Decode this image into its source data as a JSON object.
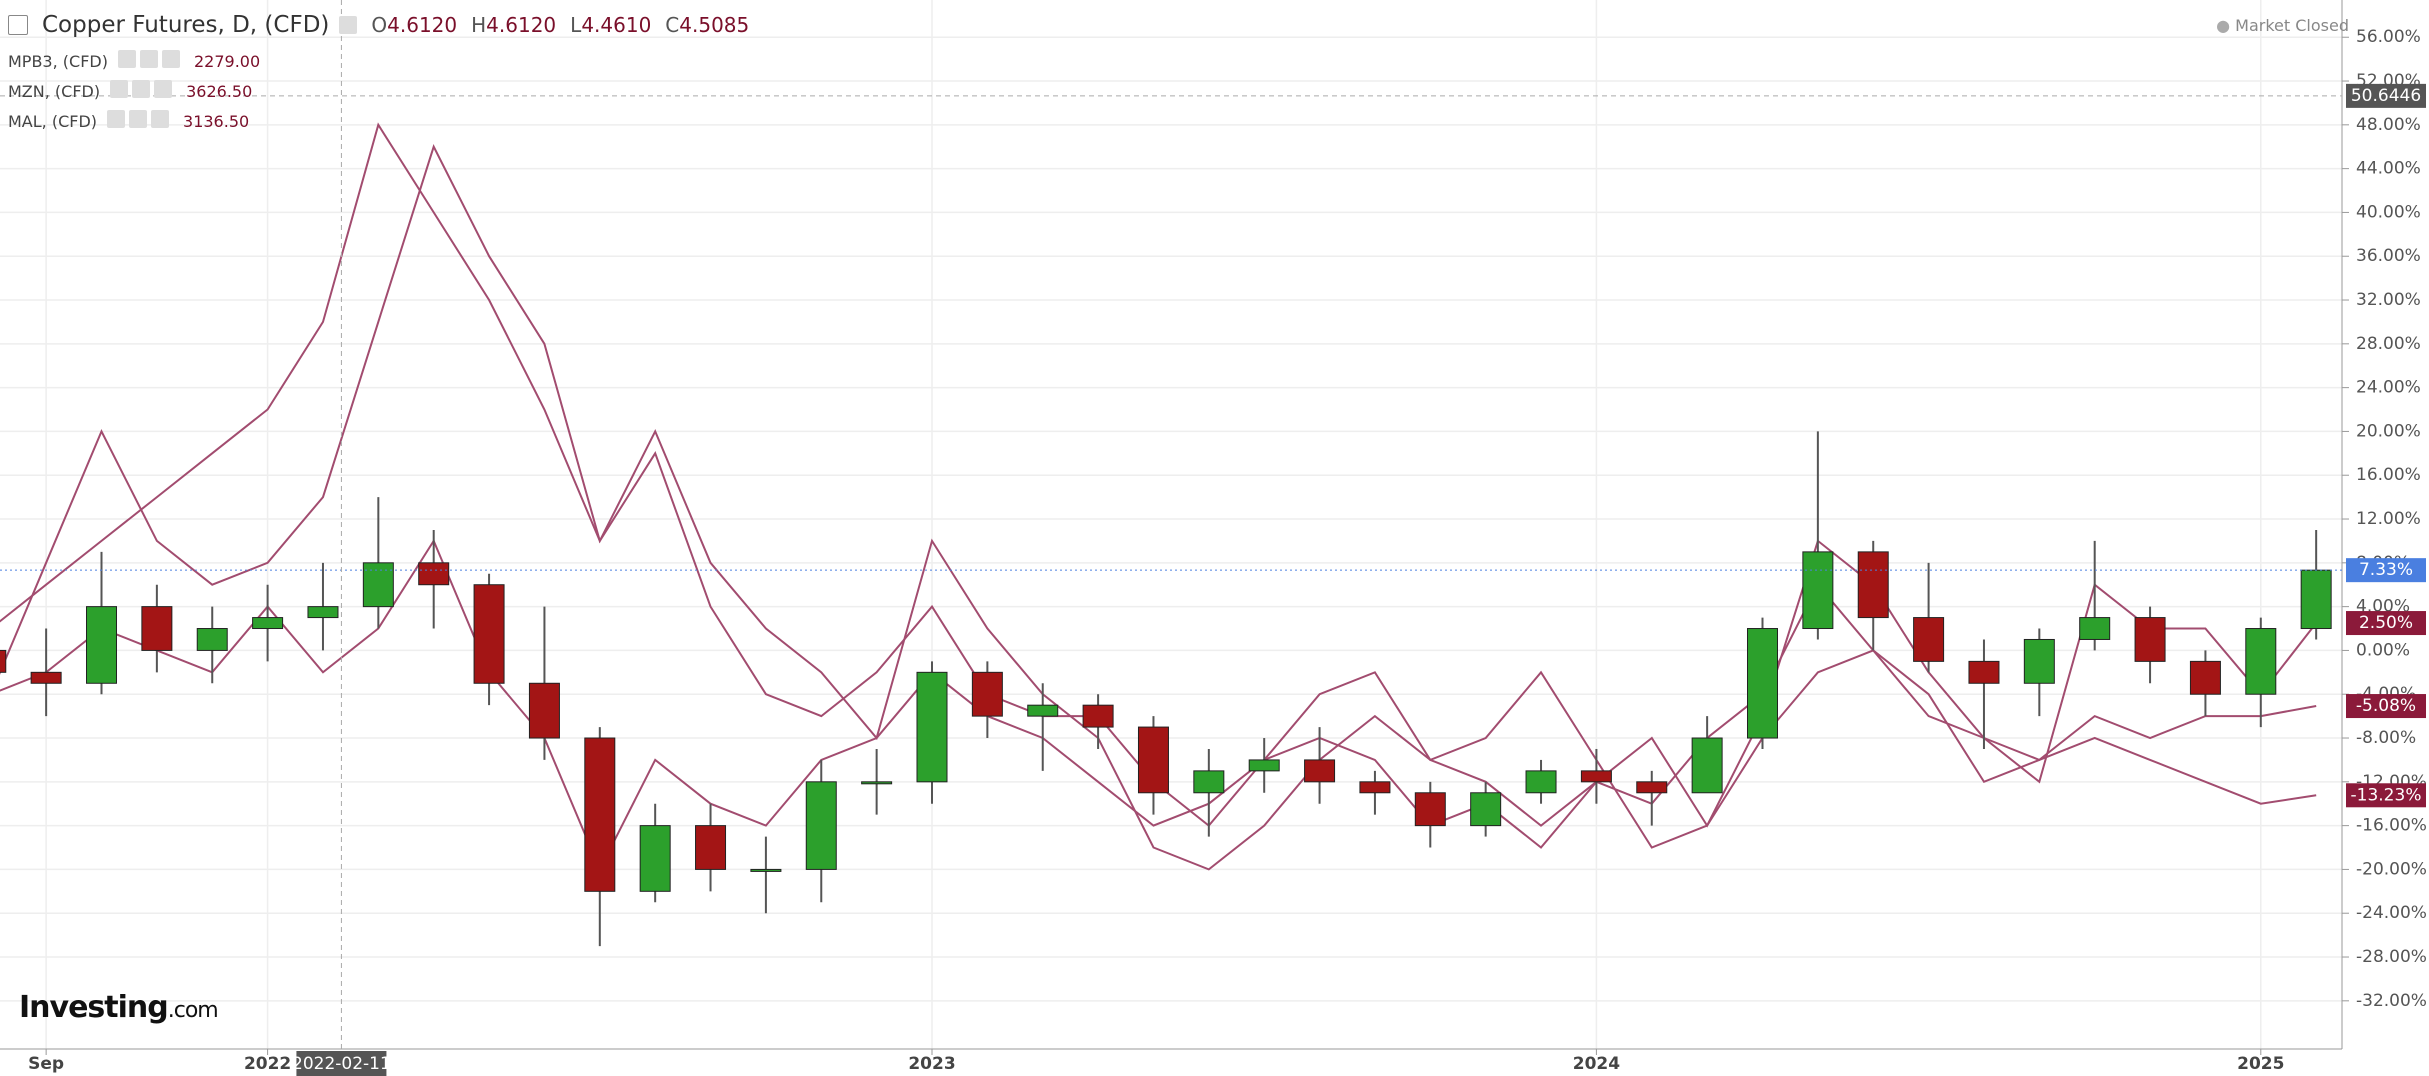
{
  "chart_data": {
    "type": "candlestick",
    "title": "Copper Futures, D, (CFD)",
    "ohlc_header": [
      {
        "label": "O",
        "value": "4.6120"
      },
      {
        "label": "H",
        "value": "4.6120"
      },
      {
        "label": "L",
        "value": "4.4610"
      },
      {
        "label": "C",
        "value": "4.5085"
      }
    ],
    "status": "Market Closed",
    "brand": {
      "name": "Investing",
      "suffix": ".com"
    },
    "x": [
      "2021-08",
      "2021-09",
      "2021-10",
      "2021-11",
      "2021-12",
      "2022-01",
      "2022-02",
      "2022-03",
      "2022-04",
      "2022-05",
      "2022-06",
      "2022-07",
      "2022-08",
      "2022-09",
      "2022-10",
      "2022-11",
      "2022-12",
      "2023-01",
      "2023-02",
      "2023-03",
      "2023-04",
      "2023-05",
      "2023-06",
      "2023-07",
      "2023-08",
      "2023-09",
      "2023-10",
      "2023-11",
      "2023-12",
      "2024-01",
      "2024-02",
      "2024-03",
      "2024-04",
      "2024-05",
      "2024-06",
      "2024-07",
      "2024-08",
      "2024-09",
      "2024-10",
      "2024-11",
      "2024-12",
      "2025-01",
      "2025-02"
    ],
    "candles": {
      "up_color": "#2ca02c",
      "down_color": "#a31515",
      "open": [
        0,
        -2,
        -3,
        4,
        0,
        2,
        3,
        4,
        8,
        6,
        -3,
        -8,
        -22,
        -16,
        -20,
        -20,
        -12,
        -12,
        -2,
        -6,
        -5,
        -7,
        -13,
        -11,
        -10,
        -12,
        -13,
        -16,
        -13,
        -11,
        -12,
        -13,
        -8,
        2,
        9,
        3,
        -1,
        -3,
        1,
        3,
        -1,
        -4,
        2
      ],
      "high": [
        2,
        2,
        9,
        6,
        4,
        6,
        8,
        14,
        11,
        7,
        4,
        -7,
        -14,
        -14,
        -17,
        -10,
        -9,
        -1,
        -1,
        -3,
        -4,
        -6,
        -9,
        -8,
        -7,
        -11,
        -12,
        -12,
        -10,
        -9,
        -11,
        -6,
        3,
        20,
        10,
        8,
        1,
        2,
        10,
        4,
        0,
        3,
        11
      ],
      "low": [
        -8,
        -6,
        -4,
        -2,
        -3,
        -1,
        0,
        2,
        2,
        -5,
        -10,
        -27,
        -23,
        -22,
        -24,
        -23,
        -15,
        -14,
        -8,
        -11,
        -9,
        -15,
        -17,
        -13,
        -14,
        -15,
        -18,
        -17,
        -14,
        -14,
        -16,
        -13,
        -9,
        1,
        0,
        -2,
        -9,
        -6,
        0,
        -3,
        -6,
        -7,
        1
      ],
      "close": [
        -2,
        -3,
        4,
        0,
        2,
        3,
        4,
        8,
        6,
        -3,
        -8,
        -22,
        -16,
        -20,
        -20,
        -12,
        -12,
        -2,
        -6,
        -5,
        -7,
        -13,
        -11,
        -10,
        -12,
        -13,
        -16,
        -13,
        -11,
        -12,
        -13,
        -8,
        2,
        9,
        3,
        -1,
        -3,
        1,
        3,
        -1,
        -4,
        2,
        7.33
      ],
      "last_label": "7.33%",
      "last_color": "#4a7fe0"
    },
    "series": [
      {
        "name": "MPB3, (CFD)",
        "price": "2279.00",
        "color": "#a24c6f",
        "last_label": "-13.23%",
        "values": [
          2,
          6,
          10,
          14,
          18,
          22,
          30,
          48,
          40,
          32,
          22,
          10,
          20,
          8,
          2,
          -2,
          -8,
          10,
          2,
          -4,
          -8,
          -18,
          -20,
          -16,
          -10,
          -6,
          -10,
          -8,
          -2,
          -10,
          -18,
          -16,
          -8,
          -2,
          0,
          -4,
          -12,
          -10,
          -8,
          -10,
          -12,
          -14,
          -13.23
        ]
      },
      {
        "name": "MZN, (CFD)",
        "price": "3626.50",
        "color": "#a24c6f",
        "last_label": "-5.08%",
        "values": [
          -4,
          8,
          20,
          10,
          6,
          8,
          14,
          30,
          46,
          36,
          28,
          10,
          18,
          4,
          -4,
          -6,
          -2,
          4,
          -4,
          -6,
          -6,
          -12,
          -16,
          -10,
          -4,
          -2,
          -10,
          -12,
          -16,
          -12,
          -14,
          -8,
          -4,
          6,
          0,
          -6,
          -8,
          -10,
          -6,
          -8,
          -6,
          -6,
          -5.08
        ]
      },
      {
        "name": "MAL, (CFD)",
        "price": "3136.50",
        "color": "#a24c6f",
        "last_label": "2.50%",
        "values": [
          -4,
          -2,
          2,
          0,
          -2,
          4,
          -2,
          2,
          10,
          -2,
          -8,
          -20,
          -10,
          -14,
          -16,
          -10,
          -8,
          -2,
          -6,
          -8,
          -12,
          -16,
          -14,
          -10,
          -8,
          -10,
          -16,
          -14,
          -18,
          -12,
          -8,
          -16,
          -6,
          10,
          6,
          -2,
          -8,
          -12,
          6,
          2,
          2,
          -4,
          2.5
        ]
      }
    ],
    "ylim": [
      -36.4,
      59.4
    ],
    "yticks": [
      {
        "value": 56,
        "label": "56.00%"
      },
      {
        "value": 52,
        "label": "52.00%"
      },
      {
        "value": 48,
        "label": "48.00%"
      },
      {
        "value": 44,
        "label": "44.00%"
      },
      {
        "value": 40,
        "label": "40.00%"
      },
      {
        "value": 36,
        "label": "36.00%"
      },
      {
        "value": 32,
        "label": "32.00%"
      },
      {
        "value": 28,
        "label": "28.00%"
      },
      {
        "value": 24,
        "label": "24.00%"
      },
      {
        "value": 20,
        "label": "20.00%"
      },
      {
        "value": 16,
        "label": "16.00%"
      },
      {
        "value": 12,
        "label": "12.00%"
      },
      {
        "value": 8,
        "label": "8.00%"
      },
      {
        "value": 4,
        "label": "4.00%"
      },
      {
        "value": 0,
        "label": "0.00%"
      },
      {
        "value": -4,
        "label": "-4.00%"
      },
      {
        "value": -8,
        "label": "-8.00%"
      },
      {
        "value": -12,
        "label": "-12.00%"
      },
      {
        "value": -16,
        "label": "-16.00%"
      },
      {
        "value": -20,
        "label": "-20.00%"
      },
      {
        "value": -24,
        "label": "-24.00%"
      },
      {
        "value": -28,
        "label": "-28.00%"
      },
      {
        "value": -32,
        "label": "-32.00%"
      }
    ],
    "xlim": [
      "2021-08-06",
      "2025-02-15"
    ],
    "xticks": [
      {
        "value": "2021-09",
        "label": "Sep"
      },
      {
        "value": "2022-01",
        "label": "2022"
      },
      {
        "value": "2023-01",
        "label": "2023"
      },
      {
        "value": "2024-01",
        "label": "2024"
      },
      {
        "value": "2025-01",
        "label": "2025"
      }
    ],
    "crosshair": {
      "x": "2022-02-11",
      "y": 50.6446
    },
    "grid": true
  }
}
